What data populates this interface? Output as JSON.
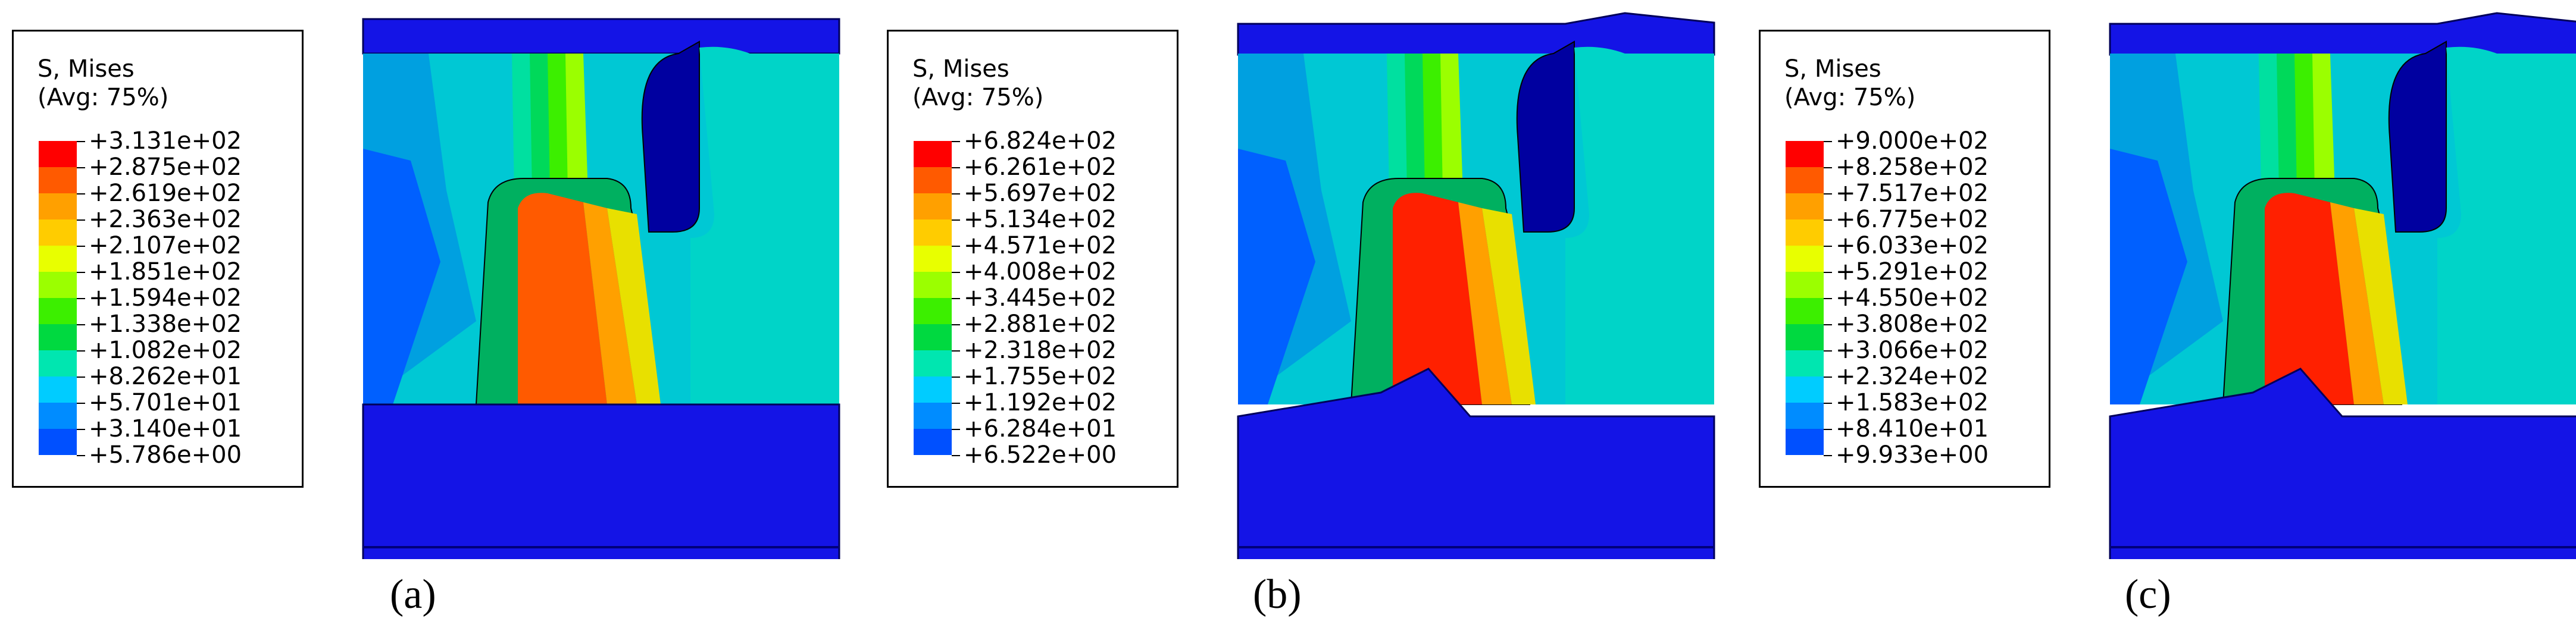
{
  "panels": [
    {
      "caption": "(a)",
      "legend_title": "S, Mises",
      "legend_subtitle": "(Avg: 75%)",
      "legend_values": [
        "+3.131e+02",
        "+2.875e+02",
        "+2.619e+02",
        "+2.363e+02",
        "+2.107e+02",
        "+1.851e+02",
        "+1.594e+02",
        "+1.338e+02",
        "+1.082e+02",
        "+8.262e+01",
        "+5.701e+01",
        "+3.140e+01",
        "+5.786e+00"
      ]
    },
    {
      "caption": "(b)",
      "legend_title": "S, Mises",
      "legend_subtitle": "(Avg: 75%)",
      "legend_values": [
        "+6.824e+02",
        "+6.261e+02",
        "+5.697e+02",
        "+5.134e+02",
        "+4.571e+02",
        "+4.008e+02",
        "+3.445e+02",
        "+2.881e+02",
        "+2.318e+02",
        "+1.755e+02",
        "+1.192e+02",
        "+6.284e+01",
        "+6.522e+00"
      ]
    },
    {
      "caption": "(c)",
      "legend_title": "S, Mises",
      "legend_subtitle": "(Avg: 75%)",
      "legend_values": [
        "+9.000e+02",
        "+8.258e+02",
        "+7.517e+02",
        "+6.775e+02",
        "+6.033e+02",
        "+5.291e+02",
        "+4.550e+02",
        "+3.808e+02",
        "+3.066e+02",
        "+2.324e+02",
        "+1.583e+02",
        "+8.410e+01",
        "+9.933e+00"
      ]
    }
  ],
  "colormap": [
    "#ff0000",
    "#ff5a00",
    "#ffa000",
    "#ffcc00",
    "#e8ff00",
    "#9bff00",
    "#3cef00",
    "#00d940",
    "#00e6b0",
    "#00ccff",
    "#008cff",
    "#0050ff",
    "#0000ff"
  ]
}
